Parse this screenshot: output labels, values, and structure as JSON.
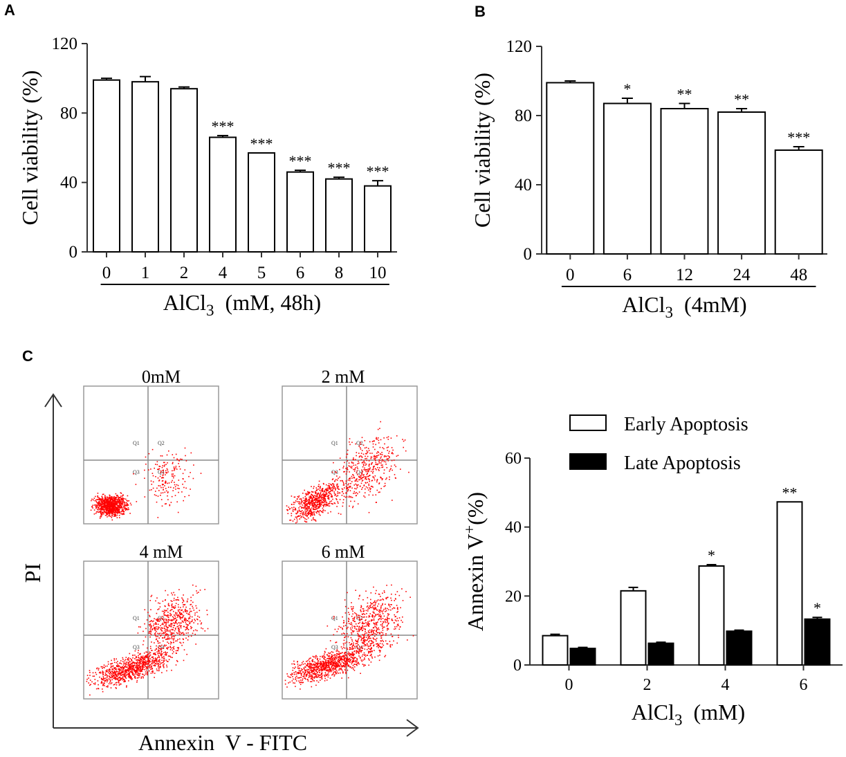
{
  "panels": {
    "a": "A",
    "b": "B",
    "c": "C"
  },
  "chart_data": [
    {
      "id": "A",
      "type": "bar",
      "title": "",
      "ylabel": "Cell viability (%)",
      "xlabel_main": "AlCl",
      "xlabel_sub": "3",
      "xlabel_rest": "  (mM, 48h)",
      "categories": [
        "0",
        "1",
        "2",
        "4",
        "5",
        "6",
        "8",
        "10"
      ],
      "values": [
        99,
        98,
        94,
        66,
        57,
        46,
        42,
        38
      ],
      "errors": [
        1,
        3,
        1,
        1,
        0,
        1,
        1,
        3
      ],
      "significance": [
        "",
        "",
        "",
        "***",
        "***",
        "***",
        "***",
        "***"
      ],
      "ylim": [
        0,
        120
      ],
      "yticks": [
        "0",
        "40",
        "80",
        "120"
      ],
      "grid": false
    },
    {
      "id": "B",
      "type": "bar",
      "title": "",
      "ylabel": "Cell viability (%)",
      "xlabel_main": "AlCl",
      "xlabel_sub": "3",
      "xlabel_rest": "  (4mM)",
      "categories": [
        "0",
        "6",
        "12",
        "24",
        "48"
      ],
      "values": [
        99,
        87,
        84,
        82,
        60
      ],
      "errors": [
        1,
        3,
        3,
        2,
        2
      ],
      "significance": [
        "",
        "*",
        "**",
        "**",
        "***"
      ],
      "ylim": [
        0,
        120
      ],
      "yticks": [
        "0",
        "40",
        "80",
        "120"
      ],
      "grid": false
    },
    {
      "id": "C-bar",
      "type": "bar",
      "title": "",
      "ylabel": "Annexin V",
      "ylabel_sup": "+",
      "ylabel_rest": "(%)",
      "xlabel_main": "AlCl",
      "xlabel_sub": "3",
      "xlabel_rest": "  (mM)",
      "categories": [
        "0",
        "2",
        "4",
        "6"
      ],
      "series": [
        {
          "name": "Early Apoptosis",
          "color": "#ffffff",
          "values": [
            8.5,
            21.5,
            28.7,
            47.3
          ],
          "errors": [
            0.4,
            1.0,
            0.4,
            0.0
          ],
          "significance": [
            "",
            "",
            "*",
            "**"
          ]
        },
        {
          "name": "Late Apoptosis",
          "color": "#000000",
          "values": [
            4.8,
            6.3,
            9.8,
            13.3
          ],
          "errors": [
            0.3,
            0.3,
            0.3,
            0.5
          ],
          "significance": [
            "",
            "",
            "",
            "*"
          ]
        }
      ],
      "ylim": [
        0,
        60
      ],
      "yticks": [
        "0",
        "20",
        "40",
        "60"
      ],
      "legend": "top",
      "grid": false
    },
    {
      "id": "C-flow",
      "type": "scatter",
      "xlabel": "Annexin  V - FITC",
      "ylabel": "PI",
      "plots": [
        {
          "label": "0mM"
        },
        {
          "label": "2 mM"
        },
        {
          "label": "4 mM"
        },
        {
          "label": "6 mM"
        }
      ],
      "quadrants": [
        "Q1",
        "Q2",
        "Q3",
        "Q4"
      ],
      "dot_color": "#ff0000"
    }
  ]
}
